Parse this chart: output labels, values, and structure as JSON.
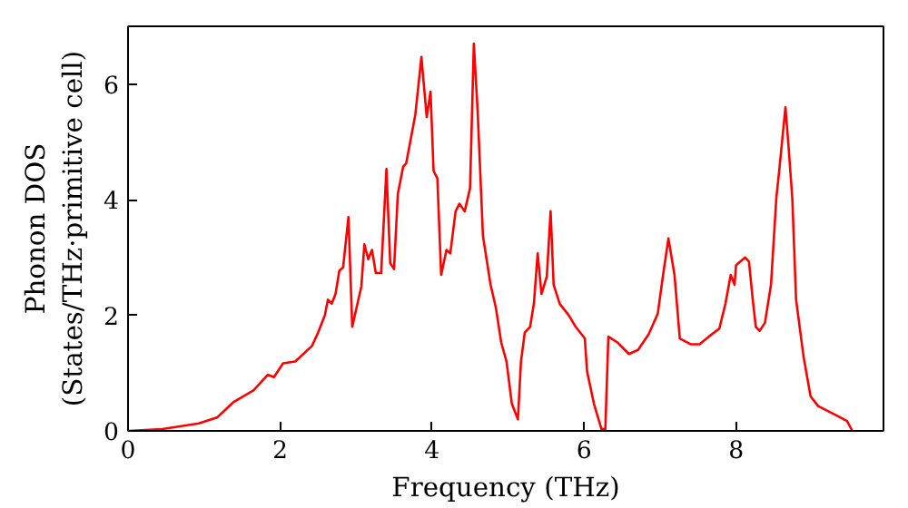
{
  "chart_data": {
    "type": "line",
    "xlabel": "Frequency (THz)",
    "ylabel": "Phonon DOS\n(States/THz·primitive cell)",
    "xlim": [
      0,
      9.94
    ],
    "ylim": [
      0,
      7
    ],
    "xticks": [
      0,
      2,
      4,
      6,
      8
    ],
    "yticks": [
      0,
      2,
      4,
      6
    ],
    "grid": false,
    "marker": "none",
    "line_style": "solid",
    "series": [
      {
        "color": "#ff0000",
        "x": [
          0,
          0.45,
          0.93,
          1.17,
          1.39,
          1.65,
          1.84,
          1.92,
          2.04,
          2.2,
          2.42,
          2.5,
          2.59,
          2.63,
          2.68,
          2.73,
          2.78,
          2.83,
          2.9,
          2.95,
          3.07,
          3.11,
          3.16,
          3.21,
          3.26,
          3.33,
          3.4,
          3.45,
          3.5,
          3.55,
          3.62,
          3.66,
          3.78,
          3.86,
          3.93,
          3.98,
          4.02,
          4.07,
          4.12,
          4.19,
          4.24,
          4.31,
          4.36,
          4.43,
          4.5,
          4.55,
          4.6,
          4.67,
          4.77,
          4.84,
          4.91,
          4.98,
          5.05,
          5.13,
          5.17,
          5.22,
          5.29,
          5.34,
          5.39,
          5.44,
          5.51,
          5.56,
          5.6,
          5.68,
          5.8,
          5.89,
          6.01,
          6.04,
          6.13,
          6.23,
          6.28,
          6.32,
          6.44,
          6.59,
          6.71,
          6.85,
          6.97,
          7.04,
          7.11,
          7.19,
          7.26,
          7.4,
          7.52,
          7.64,
          7.78,
          7.86,
          7.93,
          7.98,
          8.0,
          8.12,
          8.17,
          8.22,
          8.26,
          8.31,
          8.38,
          8.46,
          8.53,
          8.57,
          8.65,
          8.69,
          8.74,
          8.79,
          8.89,
          8.98,
          9.08,
          9.32,
          9.46,
          9.53
        ],
        "values": [
          0,
          0.03,
          0.13,
          0.23,
          0.5,
          0.7,
          0.97,
          0.93,
          1.17,
          1.2,
          1.47,
          1.7,
          2.0,
          2.27,
          2.2,
          2.37,
          2.77,
          2.83,
          3.7,
          1.8,
          2.5,
          3.23,
          2.97,
          3.13,
          2.73,
          2.73,
          4.53,
          2.9,
          2.8,
          4.1,
          4.57,
          4.63,
          5.47,
          6.47,
          5.43,
          5.87,
          4.5,
          4.37,
          2.7,
          3.13,
          3.07,
          3.8,
          3.93,
          3.8,
          4.2,
          6.7,
          5.53,
          3.37,
          2.53,
          2.13,
          1.53,
          1.2,
          0.47,
          0.2,
          1.2,
          1.7,
          1.8,
          2.2,
          3.07,
          2.37,
          2.67,
          3.8,
          2.53,
          2.2,
          2.0,
          1.8,
          1.6,
          1.03,
          0.47,
          0.03,
          0.03,
          1.63,
          1.53,
          1.33,
          1.4,
          1.67,
          2.03,
          2.7,
          3.33,
          2.7,
          1.6,
          1.5,
          1.5,
          1.63,
          1.77,
          2.2,
          2.7,
          2.53,
          2.87,
          3.0,
          2.93,
          2.27,
          1.8,
          1.73,
          1.87,
          2.53,
          4.03,
          4.53,
          5.6,
          4.93,
          4.03,
          2.27,
          1.27,
          0.6,
          0.43,
          0.27,
          0.17,
          0
        ]
      }
    ]
  }
}
